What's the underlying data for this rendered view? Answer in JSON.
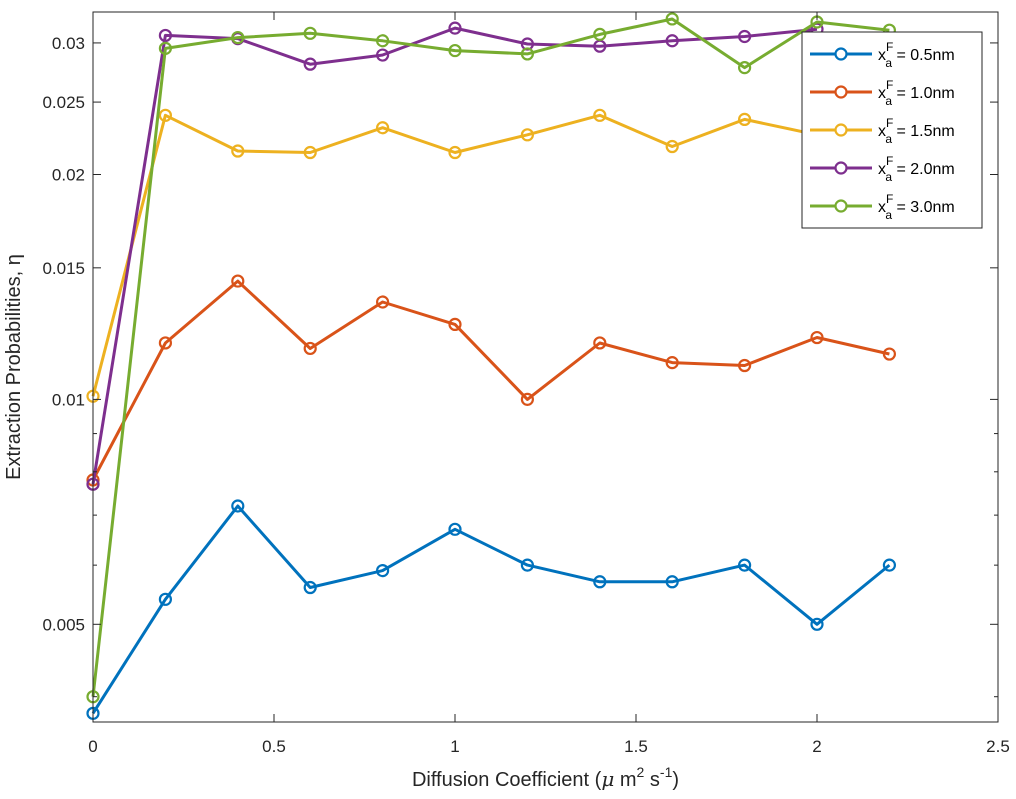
{
  "chart_data": {
    "type": "line",
    "xlabel": "Diffusion Coefficient (μ m² s⁻¹)",
    "xlabel_parts": {
      "pre": "Diffusion Coefficient (",
      "mu": "μ",
      "m": " m",
      "sup2": "2",
      "s": " s",
      "supneg1": "-1",
      "post": ")"
    },
    "ylabel": "Extraction Probabilities, η",
    "xlim": [
      0,
      2.5
    ],
    "ylim": [
      0.0037,
      0.033
    ],
    "yscale": "log",
    "x_ticks": [
      0,
      0.5,
      1,
      1.5,
      2,
      2.5
    ],
    "x_tick_labels": [
      "0",
      "0.5",
      "1",
      "1.5",
      "2",
      "2.5"
    ],
    "y_ticks": [
      0.005,
      0.01,
      0.015,
      0.02,
      0.025,
      0.03
    ],
    "y_tick_labels": [
      "0.005",
      "0.01",
      "0.015",
      "0.02",
      "0.025",
      "0.03"
    ],
    "grid": false,
    "legend_position": "top-right",
    "x": [
      0,
      0.2,
      0.4,
      0.6,
      0.8,
      1.0,
      1.2,
      1.4,
      1.6,
      1.8,
      2.0,
      2.2
    ],
    "series": [
      {
        "name": "x_a^F = 0.5nm",
        "label_main": "x",
        "label_sup": "F",
        "label_sub": "a",
        "label_rest": " = 0.5nm",
        "color": "#0072BD",
        "values": [
          0.0038,
          0.0054,
          0.0072,
          0.0056,
          0.0059,
          0.0067,
          0.006,
          0.0057,
          0.0057,
          0.006,
          0.005,
          0.006
        ]
      },
      {
        "name": "x_a^F = 1.0nm",
        "label_main": "x",
        "label_sup": "F",
        "label_sub": "a",
        "label_rest": " = 1.0nm",
        "color": "#D95319",
        "values": [
          0.0078,
          0.0119,
          0.0144,
          0.0117,
          0.0135,
          0.0126,
          0.01,
          0.0119,
          0.0112,
          0.0111,
          0.0121,
          0.0115
        ]
      },
      {
        "name": "x_a^F = 1.5nm",
        "label_main": "x",
        "label_sup": "F",
        "label_sub": "a",
        "label_rest": " = 1.5nm",
        "color": "#EDB120",
        "values": [
          0.0101,
          0.024,
          0.0215,
          0.0214,
          0.0231,
          0.0214,
          0.0226,
          0.024,
          0.0218,
          0.0237,
          0.0226,
          null
        ]
      },
      {
        "name": "x_a^F = 2.0nm",
        "label_main": "x",
        "label_sup": "F",
        "label_sub": "a",
        "label_rest": " = 2.0nm",
        "color": "#7E2F8E",
        "values": [
          0.0077,
          0.0307,
          0.0304,
          0.0281,
          0.0289,
          0.0314,
          0.0299,
          0.0297,
          0.0302,
          0.0306,
          0.0313,
          null
        ]
      },
      {
        "name": "x_a^F = 3.0nm",
        "label_main": "x",
        "label_sup": "F",
        "label_sub": "a",
        "label_rest": " = 3.0nm",
        "color": "#77AC30",
        "values": [
          0.004,
          0.0295,
          0.0305,
          0.0309,
          0.0302,
          0.0293,
          0.029,
          0.0308,
          0.0323,
          0.0278,
          0.032,
          0.0312
        ]
      }
    ]
  }
}
